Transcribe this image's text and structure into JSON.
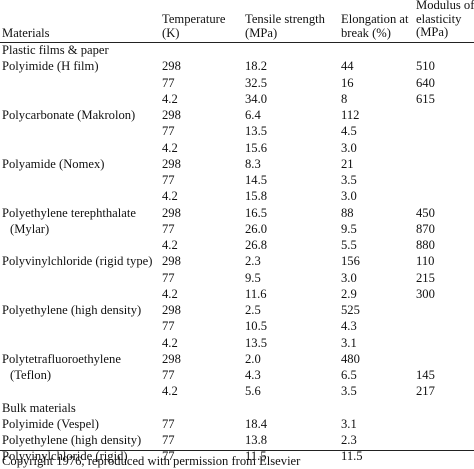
{
  "table": {
    "headers": {
      "materials": "Materials",
      "temperature": [
        "Temperature",
        "(K)"
      ],
      "tensile": [
        "Tensile strength",
        "(MPa)"
      ],
      "elongation": [
        "Elongation at",
        "break (%)"
      ],
      "modulus": [
        "Modulus of",
        "elasticity",
        "(MPa)"
      ]
    },
    "rows": [
      {
        "material": "Plastic films & paper",
        "temp": "",
        "tensile": "",
        "elong": "",
        "mod": ""
      },
      {
        "material": "Polyimide (H film)",
        "temp": "298",
        "tensile": "18.2",
        "elong": "44",
        "mod": "510"
      },
      {
        "material": "",
        "temp": "77",
        "tensile": "32.5",
        "elong": "16",
        "mod": "640"
      },
      {
        "material": "",
        "temp": "4.2",
        "tensile": "34.0",
        "elong": "8",
        "mod": "615"
      },
      {
        "material": "Polycarbonate (Makrolon)",
        "temp": "298",
        "tensile": "6.4",
        "elong": "112",
        "mod": ""
      },
      {
        "material": "",
        "temp": "77",
        "tensile": "13.5",
        "elong": "4.5",
        "mod": ""
      },
      {
        "material": "",
        "temp": "4.2",
        "tensile": "15.6",
        "elong": "3.0",
        "mod": ""
      },
      {
        "material": "Polyamide (Nomex)",
        "temp": "298",
        "tensile": "8.3",
        "elong": "21",
        "mod": ""
      },
      {
        "material": "",
        "temp": "77",
        "tensile": "14.5",
        "elong": "3.5",
        "mod": ""
      },
      {
        "material": "",
        "temp": "4.2",
        "tensile": "15.8",
        "elong": "3.0",
        "mod": ""
      },
      {
        "material": "Polyethylene terephthalate",
        "temp": "298",
        "tensile": "16.5",
        "elong": "88",
        "mod": "450"
      },
      {
        "material": "(Mylar)",
        "temp": "77",
        "tensile": "26.0",
        "elong": "9.5",
        "mod": "870",
        "indent": true
      },
      {
        "material": "",
        "temp": "4.2",
        "tensile": "26.8",
        "elong": "5.5",
        "mod": "880"
      },
      {
        "material": "Polyvinylchloride (rigid type)",
        "temp": "298",
        "tensile": "2.3",
        "elong": "156",
        "mod": "110"
      },
      {
        "material": "",
        "temp": "77",
        "tensile": "9.5",
        "elong": "3.0",
        "mod": "215"
      },
      {
        "material": "",
        "temp": "4.2",
        "tensile": "11.6",
        "elong": "2.9",
        "mod": "300"
      },
      {
        "material": "Polyethylene (high density)",
        "temp": "298",
        "tensile": "2.5",
        "elong": "525",
        "mod": ""
      },
      {
        "material": "",
        "temp": "77",
        "tensile": "10.5",
        "elong": "4.3",
        "mod": ""
      },
      {
        "material": "",
        "temp": "4.2",
        "tensile": "13.5",
        "elong": "3.1",
        "mod": ""
      },
      {
        "material": "Polytetrafluoroethylene",
        "temp": "298",
        "tensile": "2.0",
        "elong": "480",
        "mod": ""
      },
      {
        "material": "(Teflon)",
        "temp": "77",
        "tensile": "4.3",
        "elong": "6.5",
        "mod": "145",
        "indent": true
      },
      {
        "material": "",
        "temp": "4.2",
        "tensile": "5.6",
        "elong": "3.5",
        "mod": "217"
      },
      {
        "material": "Bulk materials",
        "temp": "",
        "tensile": "",
        "elong": "",
        "mod": ""
      },
      {
        "material": "Polyimide (Vespel)",
        "temp": "77",
        "tensile": "18.4",
        "elong": "3.1",
        "mod": ""
      },
      {
        "material": "Polyethylene (high density)",
        "temp": "77",
        "tensile": "13.8",
        "elong": "2.3",
        "mod": ""
      },
      {
        "material": "Polyvinylchloride (rigid)",
        "temp": "77",
        "tensile": "11.5",
        "elong": "11.5",
        "mod": ""
      }
    ]
  },
  "footer": "Copyright 1976, reproduced with permission from Elsevier"
}
